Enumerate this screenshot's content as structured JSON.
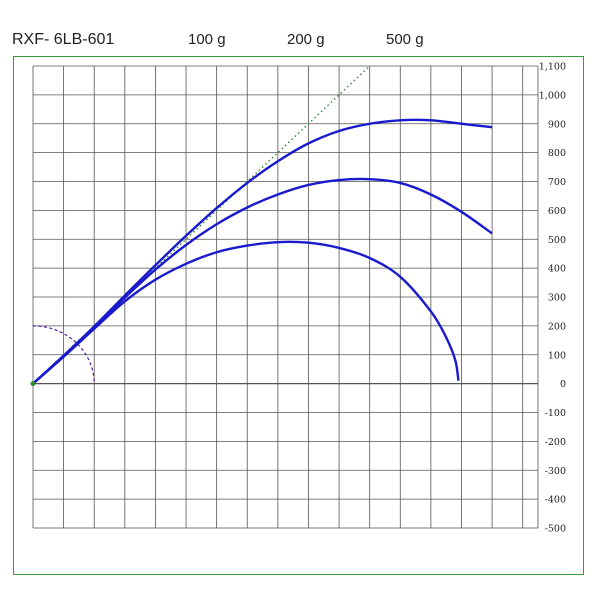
{
  "header": {
    "model": "RXF- 6LB-601",
    "weights": [
      "100 g",
      "200 g",
      "500 g"
    ]
  },
  "colors": {
    "frame": "#3a9a3a",
    "grid": "#555555",
    "curve": "#1a1acc",
    "reference_line": "#2e8b2e",
    "arc": "#4a1aa8"
  },
  "chart_data": {
    "type": "line",
    "title": "",
    "xlabel": "",
    "ylabel": "",
    "xlim": [
      0,
      16.5
    ],
    "ylim": [
      -500,
      1100
    ],
    "y_ticks": [
      1100,
      1000,
      900,
      800,
      700,
      600,
      500,
      400,
      300,
      200,
      100,
      0,
      -100,
      -200,
      -300,
      -400,
      -500
    ],
    "y_tick_labels": [
      "1,100",
      "1,000",
      "900",
      "800",
      "700",
      "600",
      "500",
      "400",
      "300",
      "200",
      "100",
      "0",
      "-100",
      "-200",
      "-300",
      "-400",
      "-500"
    ],
    "grid": true,
    "series": [
      {
        "x": [
          0,
          1,
          2,
          3,
          4,
          5,
          6,
          7,
          8,
          9,
          10,
          11,
          12,
          13,
          13.5,
          13.8,
          13.9
        ],
        "y": [
          0,
          93,
          190,
          285,
          360,
          415,
          455,
          478,
          490,
          488,
          470,
          435,
          370,
          250,
          160,
          80,
          10
        ]
      },
      {
        "x": [
          0,
          1,
          2,
          3,
          4,
          5,
          6,
          7,
          8,
          9,
          10,
          11,
          12,
          13,
          14,
          15
        ],
        "y": [
          0,
          95,
          195,
          298,
          395,
          480,
          552,
          610,
          655,
          688,
          705,
          708,
          695,
          655,
          595,
          520
        ]
      },
      {
        "x": [
          0,
          1,
          2,
          3,
          4,
          5,
          6,
          7,
          8,
          9,
          10,
          11,
          12,
          13,
          14,
          15
        ],
        "y": [
          0,
          97,
          198,
          305,
          410,
          512,
          608,
          695,
          770,
          832,
          875,
          900,
          912,
          912,
          900,
          888
        ]
      }
    ],
    "reference_line": {
      "x": [
        0,
        11
      ],
      "y": [
        0,
        1100
      ]
    },
    "reference_arc": {
      "center": [
        0,
        0
      ],
      "radius": 2
    }
  }
}
